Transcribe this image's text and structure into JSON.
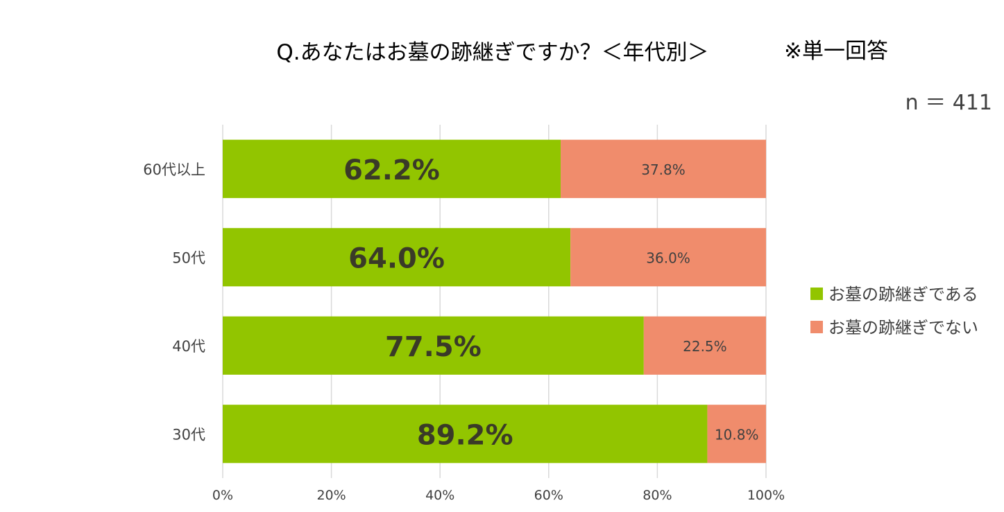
{
  "title": "Q.あなたはお墓の跡継ぎですか？＜年代別＞",
  "note": "※単一回答",
  "sample_size": "n ＝ 411",
  "colors": {
    "series_yes": "#92c500",
    "series_no": "#f08c6c",
    "grid": "#d9d9d9"
  },
  "chart_data": {
    "type": "bar",
    "orientation": "horizontal",
    "stacked": true,
    "categories": [
      "60代以上",
      "50代",
      "40代",
      "30代"
    ],
    "series": [
      {
        "name": "お墓の跡継ぎである",
        "values": [
          62.2,
          64.0,
          77.5,
          89.2
        ],
        "labels": [
          "62.2%",
          "64.0%",
          "77.5%",
          "89.2%"
        ]
      },
      {
        "name": "お墓の跡継ぎでない",
        "values": [
          37.8,
          36.0,
          22.5,
          10.8
        ],
        "labels": [
          "37.8%",
          "36.0%",
          "22.5%",
          "10.8%"
        ]
      }
    ],
    "xlim": [
      0,
      100
    ],
    "xticks": [
      "0%",
      "20%",
      "40%",
      "60%",
      "80%",
      "100%"
    ],
    "grid": true,
    "legend_position": "right"
  }
}
